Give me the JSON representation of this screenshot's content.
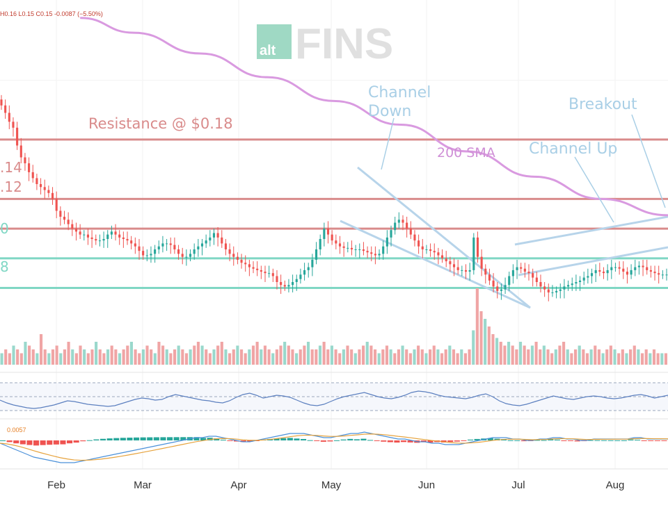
{
  "header": {
    "ohlc": "H0.16  L0.15  C0.15  -0.0087 (−5.50%)",
    "macd_value": "0.0057"
  },
  "logo": {
    "prefix": "alt",
    "name": "FINS"
  },
  "annotations": {
    "resistance": "Resistance @ $0.18",
    "sma": "200 SMA",
    "channel_down": [
      "Channel",
      "Down"
    ],
    "channel_up": "Channel Up",
    "breakout": "Breakout"
  },
  "level_labels": [
    ".14",
    ".12",
    "0",
    "8"
  ],
  "colors": {
    "up": "#26a69a",
    "down": "#ef5350",
    "resistance_line": "#d98b8b",
    "support_line": "#7fd7c4",
    "sma": "#d99ae0",
    "channel": "#b7d4ea",
    "annotation_red": "#d98b8b",
    "annotation_blue": "#a9cfe6",
    "annotation_purple": "#cf8fd6",
    "rsi_line": "#5b7fbf",
    "macd_line": "#4a90d9",
    "signal_line": "#e6a23c"
  },
  "chart_data": {
    "type": "candlestick",
    "title": "",
    "x_axis": {
      "tick_labels": [
        "Feb",
        "Mar",
        "Apr",
        "May",
        "Jun",
        "Jul",
        "Aug"
      ]
    },
    "y_levels": [
      {
        "label": "Resistance @ $0.18",
        "price": 0.18,
        "style": "resistance"
      },
      {
        "label": ".14",
        "price": 0.14,
        "style": "resistance"
      },
      {
        "label": ".12",
        "price": 0.12,
        "style": "resistance"
      },
      {
        "label": "0",
        "price": 0.1,
        "style": "support"
      },
      {
        "label": "8",
        "price": 0.08,
        "style": "support"
      }
    ],
    "y_range": [
      0.04,
      0.26
    ],
    "price_series": [
      0.203,
      0.198,
      0.192,
      0.188,
      0.176,
      0.168,
      0.164,
      0.158,
      0.154,
      0.15,
      0.148,
      0.146,
      0.144,
      0.14,
      0.132,
      0.128,
      0.126,
      0.123,
      0.12,
      0.118,
      0.116,
      0.116,
      0.114,
      0.113,
      0.112,
      0.112,
      0.113,
      0.116,
      0.118,
      0.116,
      0.114,
      0.113,
      0.112,
      0.11,
      0.108,
      0.105,
      0.102,
      0.102,
      0.103,
      0.106,
      0.108,
      0.11,
      0.11,
      0.109,
      0.106,
      0.103,
      0.101,
      0.101,
      0.103,
      0.106,
      0.108,
      0.11,
      0.112,
      0.114,
      0.117,
      0.114,
      0.11,
      0.106,
      0.103,
      0.101,
      0.099,
      0.097,
      0.096,
      0.094,
      0.093,
      0.092,
      0.091,
      0.09,
      0.09,
      0.088,
      0.084,
      0.082,
      0.081,
      0.082,
      0.084,
      0.086,
      0.089,
      0.092,
      0.094,
      0.099,
      0.106,
      0.113,
      0.12,
      0.116,
      0.112,
      0.11,
      0.108,
      0.107,
      0.107,
      0.106,
      0.106,
      0.106,
      0.105,
      0.104,
      0.103,
      0.102,
      0.103,
      0.108,
      0.114,
      0.119,
      0.124,
      0.126,
      0.124,
      0.12,
      0.116,
      0.112,
      0.108,
      0.106,
      0.106,
      0.105,
      0.104,
      0.102,
      0.1,
      0.098,
      0.096,
      0.094,
      0.092,
      0.092,
      0.091,
      0.092,
      0.114,
      0.101,
      0.093,
      0.089,
      0.085,
      0.081,
      0.078,
      0.079,
      0.082,
      0.088,
      0.092,
      0.094,
      0.093,
      0.091,
      0.09,
      0.087,
      0.084,
      0.081,
      0.079,
      0.077,
      0.077,
      0.078,
      0.079,
      0.081,
      0.082,
      0.083,
      0.084,
      0.085,
      0.087,
      0.088,
      0.09,
      0.092,
      0.091,
      0.09,
      0.092,
      0.094,
      0.094,
      0.093,
      0.091,
      0.089,
      0.092,
      0.094,
      0.095,
      0.094,
      0.092,
      0.091,
      0.09,
      0.089,
      0.089,
      0.089
    ],
    "sma200": [
      [
        0.12,
        0.262
      ],
      [
        0.2,
        0.252
      ],
      [
        0.3,
        0.238
      ],
      [
        0.4,
        0.222
      ],
      [
        0.5,
        0.206
      ],
      [
        0.6,
        0.19
      ],
      [
        0.7,
        0.172
      ],
      [
        0.8,
        0.155
      ],
      [
        0.9,
        0.14
      ],
      [
        1.0,
        0.129
      ]
    ],
    "rsi_series": [
      45,
      41,
      38,
      36,
      34,
      33,
      34,
      36,
      38,
      41,
      44,
      43,
      41,
      39,
      38,
      37,
      36,
      37,
      40,
      43,
      46,
      48,
      47,
      45,
      46,
      50,
      53,
      51,
      49,
      47,
      45,
      44,
      42,
      41,
      44,
      49,
      53,
      55,
      52,
      48,
      50,
      52,
      51,
      49,
      45,
      41,
      38,
      37,
      39,
      43,
      47,
      50,
      52,
      54,
      56,
      53,
      50,
      48,
      47,
      49,
      52,
      56,
      58,
      57,
      55,
      52,
      50,
      49,
      48,
      47,
      49,
      52,
      54,
      50,
      44,
      40,
      38,
      37,
      39,
      42,
      45,
      48,
      51,
      49,
      47,
      46,
      48,
      50,
      51,
      50,
      48,
      47,
      48,
      50,
      52,
      53,
      51,
      48,
      50,
      52
    ],
    "rsi_levels": [
      70,
      50,
      30
    ],
    "volume_series": [
      3,
      4,
      3,
      5,
      4,
      3,
      6,
      5,
      4,
      3,
      8,
      4,
      3,
      4,
      5,
      3,
      4,
      6,
      4,
      3,
      5,
      4,
      3,
      4,
      6,
      4,
      3,
      4,
      5,
      4,
      3,
      4,
      5,
      6,
      4,
      3,
      4,
      5,
      4,
      3,
      6,
      5,
      4,
      3,
      4,
      5,
      4,
      3,
      4,
      5,
      6,
      5,
      4,
      3,
      4,
      5,
      6,
      4,
      3,
      4,
      5,
      4,
      3,
      4,
      5,
      6,
      4,
      5,
      4,
      3,
      4,
      5,
      6,
      5,
      4,
      3,
      4,
      5,
      6,
      4,
      4,
      5,
      6,
      4,
      5,
      4,
      3,
      4,
      5,
      4,
      3,
      4,
      5,
      6,
      5,
      4,
      3,
      4,
      5,
      4,
      3,
      4,
      5,
      4,
      3,
      4,
      5,
      4,
      3,
      4,
      5,
      4,
      3,
      4,
      5,
      4,
      3,
      4,
      3,
      4,
      9,
      20,
      14,
      12,
      10,
      8,
      7,
      6,
      5,
      6,
      5,
      4,
      6,
      5,
      4,
      5,
      6,
      4,
      5,
      4,
      3,
      4,
      5,
      6,
      4,
      3,
      4,
      5,
      4,
      3,
      4,
      5,
      4,
      3,
      4,
      5,
      4,
      3,
      4,
      3,
      4,
      5,
      4,
      3,
      4,
      3,
      4,
      3,
      3,
      3
    ],
    "macd_series": [
      -2,
      -4,
      -6,
      -8,
      -10,
      -12,
      -13,
      -14,
      -15,
      -16,
      -16,
      -16,
      -15,
      -14,
      -13,
      -12,
      -11,
      -10,
      -9,
      -8,
      -7,
      -6,
      -5,
      -4,
      -3,
      -2,
      -1,
      0,
      1,
      2,
      2,
      3,
      3,
      2,
      1,
      0,
      -1,
      -1,
      0,
      1,
      2,
      3,
      4,
      5,
      5,
      5,
      4,
      3,
      2,
      2,
      3,
      4,
      5,
      5,
      6,
      5,
      4,
      3,
      2,
      1,
      1,
      0,
      -1,
      -1,
      -2,
      -2,
      -3,
      -3,
      -3,
      -2,
      -1,
      0,
      1,
      2,
      2,
      2,
      1,
      1,
      0,
      0,
      1,
      1,
      2,
      2,
      1,
      1,
      0,
      0,
      1,
      1,
      1,
      1,
      1,
      1,
      2,
      2,
      1,
      1,
      1,
      1
    ]
  }
}
